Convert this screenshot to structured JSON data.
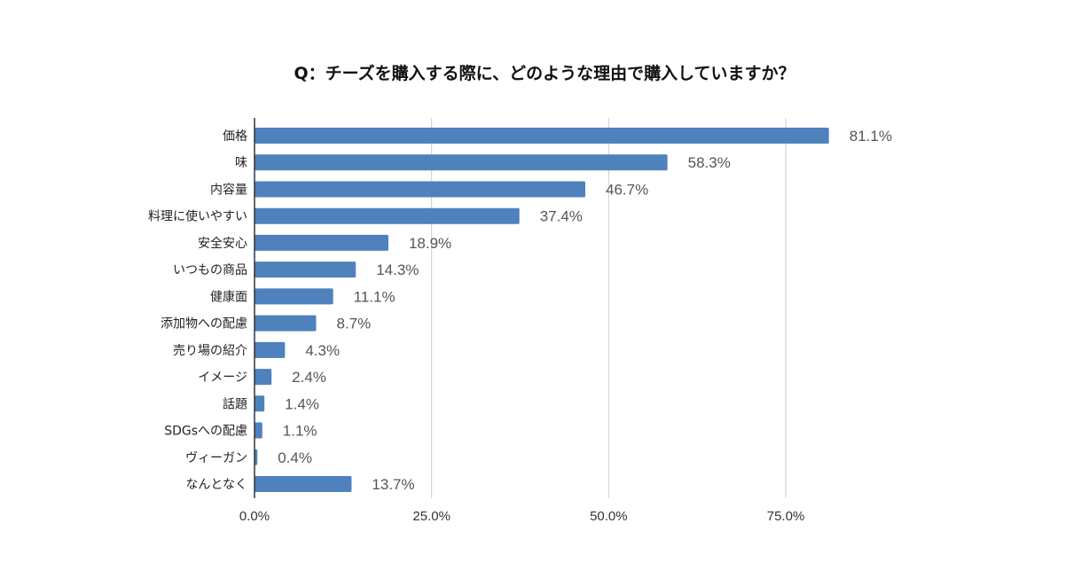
{
  "chart_data": {
    "type": "bar",
    "orientation": "horizontal",
    "title": "Q：チーズを購入する際に、どのような理由で購入していますか？",
    "categories": [
      "価格",
      "味",
      "内容量",
      "料理に使いやすい",
      "安全安心",
      "いつもの商品",
      "健康面",
      "添加物への配慮",
      "売り場の紹介",
      "イメージ",
      "話題",
      "SDGsへの配慮",
      "ヴィーガン",
      "なんとなく"
    ],
    "values": [
      81.1,
      58.3,
      46.7,
      37.4,
      18.9,
      14.3,
      11.1,
      8.7,
      4.3,
      2.4,
      1.4,
      1.1,
      0.4,
      13.7
    ],
    "value_labels": [
      "81.1%",
      "58.3%",
      "46.7%",
      "37.4%",
      "18.9%",
      "14.3%",
      "11.1%",
      "8.7%",
      "4.3%",
      "2.4%",
      "1.4%",
      "1.1%",
      "0.4%",
      "13.7%"
    ],
    "xticks": [
      0,
      25,
      50,
      75
    ],
    "xtick_labels": [
      "0.0%",
      "25.0%",
      "50.0%",
      "75.0%"
    ],
    "xlim": [
      0,
      100
    ],
    "xlabel": "",
    "ylabel": "",
    "grid": true,
    "legend": "none",
    "colors": {
      "bar": "#4f81bd",
      "grid": "#cccccc",
      "axis": "#333333"
    }
  }
}
